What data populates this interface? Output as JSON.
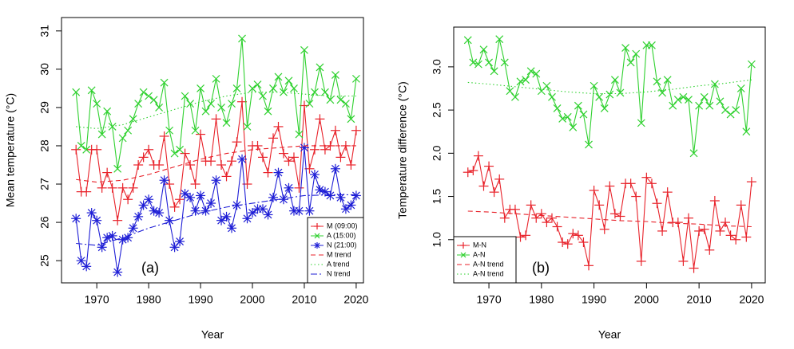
{
  "chart_data": [
    {
      "type": "line",
      "annotation": "(a)",
      "xlabel": "Year",
      "ylabel": "Mean temperature (°C)",
      "x": [
        1966,
        1967,
        1968,
        1969,
        1970,
        1971,
        1972,
        1973,
        1974,
        1975,
        1976,
        1977,
        1978,
        1979,
        1980,
        1981,
        1982,
        1983,
        1984,
        1985,
        1986,
        1987,
        1988,
        1989,
        1990,
        1991,
        1992,
        1993,
        1994,
        1995,
        1996,
        1997,
        1998,
        1999,
        2000,
        2001,
        2002,
        2003,
        2004,
        2005,
        2006,
        2007,
        2008,
        2009,
        2010,
        2011,
        2012,
        2013,
        2014,
        2015,
        2016,
        2017,
        2018,
        2019,
        2020
      ],
      "xlim": [
        1963.2,
        2021.4
      ],
      "xticks": [
        1970,
        1980,
        1990,
        2000,
        2010,
        2020
      ],
      "ylim": [
        24.42,
        31.35
      ],
      "yticks": [
        25,
        26,
        27,
        28,
        29,
        30,
        31
      ],
      "legend": "bottom-right",
      "series": [
        {
          "name": "M (09:00)",
          "color": "#e8222a",
          "marker": "plus",
          "linestyle": "solid",
          "values": [
            27.9,
            26.8,
            26.8,
            27.9,
            27.9,
            26.9,
            27.3,
            26.9,
            26.05,
            26.9,
            26.6,
            26.9,
            27.5,
            27.7,
            27.9,
            27.5,
            27.5,
            28.25,
            27.0,
            26.4,
            26.6,
            27.8,
            27.5,
            27.0,
            28.3,
            27.6,
            27.6,
            28.7,
            27.5,
            27.2,
            27.6,
            28.1,
            29.15,
            27.0,
            28.0,
            28.0,
            27.7,
            27.3,
            28.2,
            28.5,
            27.8,
            27.6,
            27.7,
            26.9,
            29.05,
            27.4,
            27.9,
            28.7,
            27.9,
            28.0,
            28.4,
            27.7,
            28.0,
            27.5,
            28.4
          ]
        },
        {
          "name": "A (15:00)",
          "color": "#2fd12f",
          "marker": "cross",
          "linestyle": "solid",
          "values": [
            29.4,
            28.0,
            27.9,
            29.45,
            29.1,
            28.3,
            28.9,
            28.5,
            27.4,
            28.2,
            28.4,
            28.7,
            29.1,
            29.4,
            29.3,
            29.2,
            29.0,
            29.65,
            28.4,
            27.8,
            27.9,
            29.3,
            29.1,
            28.4,
            29.5,
            28.9,
            29.1,
            29.75,
            29.0,
            28.6,
            29.1,
            29.5,
            30.8,
            28.5,
            29.5,
            29.6,
            29.3,
            28.9,
            29.5,
            29.8,
            29.4,
            29.7,
            29.5,
            28.3,
            30.5,
            29.1,
            29.4,
            30.05,
            29.4,
            29.2,
            29.85,
            29.2,
            29.1,
            28.7,
            29.75
          ]
        },
        {
          "name": "N (21:00)",
          "color": "#1f1fd6",
          "marker": "star",
          "linestyle": "solid",
          "values": [
            26.1,
            25.0,
            24.85,
            26.25,
            26.05,
            25.35,
            25.6,
            25.65,
            24.7,
            25.55,
            25.6,
            25.85,
            26.15,
            26.45,
            26.6,
            26.3,
            26.25,
            27.1,
            26.05,
            25.35,
            25.5,
            26.75,
            26.65,
            26.3,
            26.7,
            26.3,
            26.5,
            27.1,
            26.05,
            26.15,
            25.85,
            26.45,
            27.65,
            26.1,
            26.25,
            26.35,
            26.35,
            26.2,
            26.65,
            27.3,
            26.6,
            26.9,
            26.3,
            26.3,
            27.95,
            26.3,
            27.25,
            26.85,
            26.8,
            26.7,
            27.4,
            26.65,
            26.35,
            26.45,
            26.7
          ]
        },
        {
          "name": "M trend",
          "color": "#e8222a",
          "marker": "none",
          "linestyle": "dashed",
          "x": [
            1966,
            1970,
            1975,
            1980,
            1985,
            1990,
            1995,
            2000,
            2005,
            2010,
            2015,
            2020
          ],
          "values": [
            27.12,
            27.05,
            27.1,
            27.25,
            27.45,
            27.65,
            27.8,
            27.9,
            27.95,
            28.0,
            28.0,
            28.0
          ]
        },
        {
          "name": "A trend",
          "color": "#2fd12f",
          "marker": "none",
          "linestyle": "dotted",
          "x": [
            1966,
            1970,
            1975,
            1980,
            1985,
            1990,
            1995,
            2000,
            2005,
            2010,
            2015,
            2020
          ],
          "values": [
            28.5,
            28.45,
            28.55,
            28.75,
            28.95,
            29.15,
            29.3,
            29.4,
            29.4,
            29.35,
            29.3,
            29.3
          ]
        },
        {
          "name": "N trend",
          "color": "#1f1fd6",
          "marker": "none",
          "linestyle": "dotdash",
          "x": [
            1966,
            1970,
            1975,
            1980,
            1985,
            1990,
            1995,
            2000,
            2005,
            2010,
            2015,
            2020
          ],
          "values": [
            25.45,
            25.4,
            25.6,
            25.85,
            26.05,
            26.25,
            26.4,
            26.5,
            26.6,
            26.7,
            26.72,
            26.72
          ]
        }
      ]
    },
    {
      "type": "line",
      "annotation": "(b)",
      "xlabel": "Year",
      "ylabel": "Temperature difference (°C)",
      "x": [
        1966,
        1967,
        1968,
        1969,
        1970,
        1971,
        1972,
        1973,
        1974,
        1975,
        1976,
        1977,
        1978,
        1979,
        1980,
        1981,
        1982,
        1983,
        1984,
        1985,
        1986,
        1987,
        1988,
        1989,
        1990,
        1991,
        1992,
        1993,
        1994,
        1995,
        1996,
        1997,
        1998,
        1999,
        2000,
        2001,
        2002,
        2003,
        2004,
        2005,
        2006,
        2007,
        2008,
        2009,
        2010,
        2011,
        2012,
        2013,
        2014,
        2015,
        2016,
        2017,
        2018,
        2019,
        2020
      ],
      "xlim": [
        1963.3,
        2022.6
      ],
      "xticks": [
        1970,
        1980,
        1990,
        2000,
        2010,
        2020
      ],
      "ylim": [
        0.5,
        3.46
      ],
      "yticks": [
        {
          "value": 1,
          "label": "1.0"
        },
        {
          "value": 1.5,
          "label": "1.5"
        },
        {
          "value": 2,
          "label": "2.0"
        },
        {
          "value": 2.5,
          "label": "2.5"
        },
        {
          "value": 3,
          "label": "3.0"
        }
      ],
      "legend": "bottom-left",
      "series": [
        {
          "name": "M-N",
          "color": "#e8222a",
          "marker": "plus",
          "linestyle": "solid",
          "values": [
            1.78,
            1.8,
            1.97,
            1.62,
            1.85,
            1.55,
            1.7,
            1.25,
            1.35,
            1.35,
            1.03,
            1.05,
            1.4,
            1.25,
            1.3,
            1.2,
            1.25,
            1.15,
            0.97,
            0.95,
            1.07,
            1.05,
            0.97,
            0.7,
            1.57,
            1.4,
            1.12,
            1.62,
            1.3,
            1.27,
            1.65,
            1.65,
            1.5,
            0.75,
            1.72,
            1.65,
            1.42,
            1.1,
            1.55,
            1.2,
            1.2,
            0.75,
            1.25,
            0.67,
            1.1,
            1.12,
            0.88,
            1.45,
            1.1,
            1.2,
            1.05,
            1.0,
            1.4,
            1.03,
            1.67
          ]
        },
        {
          "name": "A-N",
          "color": "#2fd12f",
          "marker": "cross",
          "linestyle": "solid",
          "values": [
            3.31,
            3.05,
            3.03,
            3.2,
            3.05,
            2.95,
            3.32,
            3.05,
            2.72,
            2.65,
            2.83,
            2.85,
            2.95,
            2.92,
            2.72,
            2.78,
            2.65,
            2.52,
            2.4,
            2.42,
            2.3,
            2.55,
            2.45,
            2.1,
            2.78,
            2.65,
            2.52,
            2.68,
            2.85,
            2.7,
            3.22,
            3.05,
            3.15,
            2.35,
            3.25,
            3.25,
            2.83,
            2.7,
            2.85,
            2.55,
            2.62,
            2.65,
            2.62,
            2.0,
            2.55,
            2.65,
            2.55,
            2.8,
            2.6,
            2.5,
            2.45,
            2.5,
            2.75,
            2.25,
            3.03
          ]
        },
        {
          "name": "A-N trend",
          "color": "#e8222a",
          "marker": "none",
          "linestyle": "dashed",
          "x": [
            1966,
            1970,
            1975,
            1980,
            1985,
            1990,
            1995,
            2000,
            2005,
            2010,
            2015,
            2020
          ],
          "values": [
            1.33,
            1.32,
            1.3,
            1.28,
            1.26,
            1.24,
            1.22,
            1.21,
            1.19,
            1.18,
            1.16,
            1.15
          ]
        },
        {
          "name": "A-N trend",
          "color": "#2fd12f",
          "marker": "none",
          "linestyle": "dotted",
          "x": [
            1966,
            1970,
            1975,
            1980,
            1985,
            1990,
            1995,
            2000,
            2005,
            2010,
            2015,
            2020
          ],
          "values": [
            2.82,
            2.8,
            2.77,
            2.74,
            2.71,
            2.69,
            2.69,
            2.71,
            2.74,
            2.78,
            2.81,
            2.85
          ]
        }
      ]
    }
  ]
}
